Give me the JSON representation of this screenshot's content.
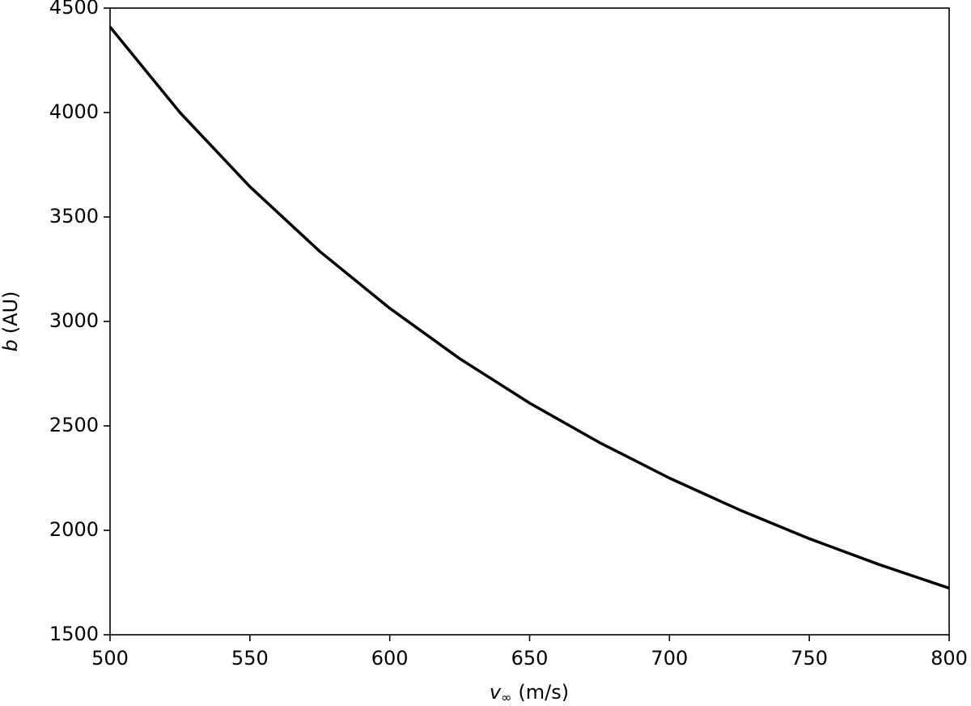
{
  "chart_data": {
    "type": "line",
    "xlabel": {
      "symbol": "v",
      "subscript": "∞",
      "unit": "(m/s)"
    },
    "ylabel": {
      "symbol": "b",
      "unit": "(AU)"
    },
    "x": [
      500,
      525,
      550,
      575,
      600,
      625,
      650,
      675,
      700,
      725,
      750,
      775,
      800
    ],
    "values": [
      4410,
      4000,
      3645,
      3335,
      3063,
      2822,
      2609,
      2420,
      2250,
      2098,
      1960,
      1836,
      1723
    ],
    "color": "#000000",
    "xlim": [
      500,
      800
    ],
    "xticks": [
      500,
      550,
      600,
      650,
      700,
      750,
      800
    ],
    "ylim": [
      1500,
      4500
    ],
    "yticks": [
      1500,
      2000,
      2500,
      3000,
      3500,
      4000,
      4500
    ],
    "grid": false
  }
}
